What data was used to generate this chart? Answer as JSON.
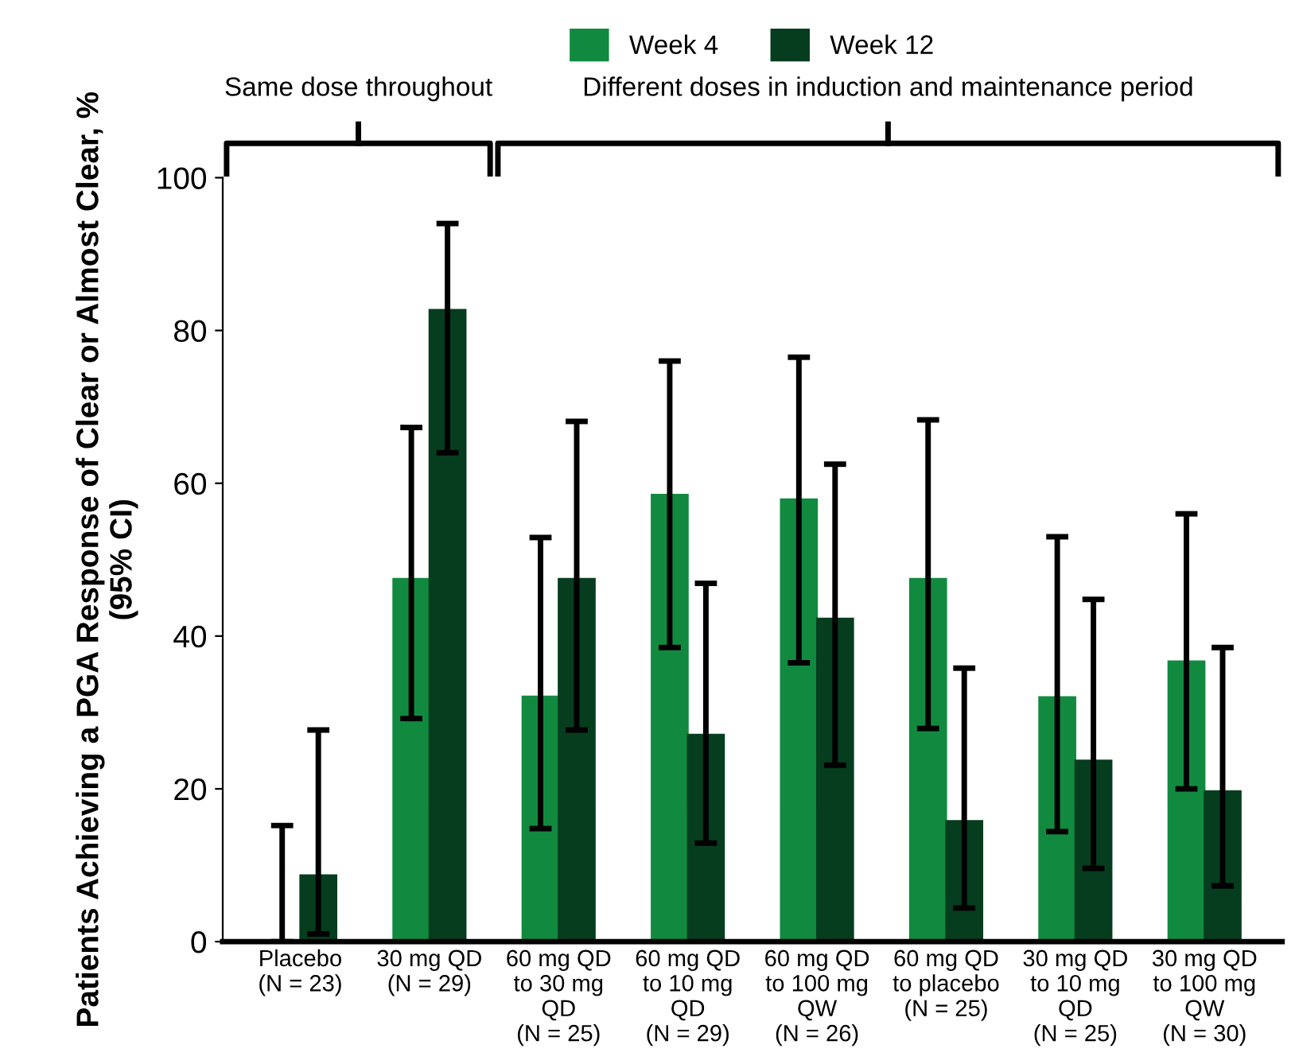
{
  "chart_data": {
    "type": "bar",
    "ylabel": "Patients Achieving a PGA Response of Clear or Almost Clear, % (95% CI)",
    "categories": [
      "Placebo\n(N = 23)",
      "30 mg QD\n(N = 29)",
      "60 mg QD\nto 30 mg\nQD\n(N = 25)",
      "60 mg QD\nto 10 mg\nQD\n(N = 29)",
      "60 mg QD\nto 100 mg\nQW\n(N = 26)",
      "60 mg QD\nto placebo\n(N = 25)",
      "30 mg QD\nto 10 mg\nQD\n(N = 25)",
      "30 mg QD\nto 100 mg\nQW\n(N = 30)"
    ],
    "series": [
      {
        "name": "Week 4",
        "color": "#118a3f",
        "values": [
          0,
          47.5,
          32.1,
          58.5,
          57.9,
          47.5,
          32,
          36.7
        ],
        "errors": [
          [
            0,
            15.2
          ],
          [
            29.2,
            67.3
          ],
          [
            14.8,
            52.9
          ],
          [
            38.5,
            76
          ],
          [
            36.5,
            76.5
          ],
          [
            27.9,
            68.3
          ],
          [
            14.4,
            53
          ],
          [
            20,
            56
          ]
        ]
      },
      {
        "name": "Week 12",
        "color": "#063d1f",
        "values": [
          8.7,
          82.7,
          47.5,
          27.1,
          42.3,
          15.8,
          23.7,
          19.7
        ],
        "errors": [
          [
            1,
            27.7
          ],
          [
            64,
            94
          ],
          [
            27.7,
            68.1
          ],
          [
            12.9,
            46.9
          ],
          [
            23.1,
            62.5
          ],
          [
            4.4,
            35.8
          ],
          [
            9.6,
            44.8
          ],
          [
            7.3,
            38.5
          ]
        ]
      }
    ],
    "ylim": [
      0,
      100
    ],
    "yticks": [
      0,
      20,
      40,
      60,
      80,
      100
    ],
    "grid": false,
    "legend": "top",
    "annotations": [
      "Same dose throughout",
      "Different doses in induction and maintenance period"
    ]
  }
}
